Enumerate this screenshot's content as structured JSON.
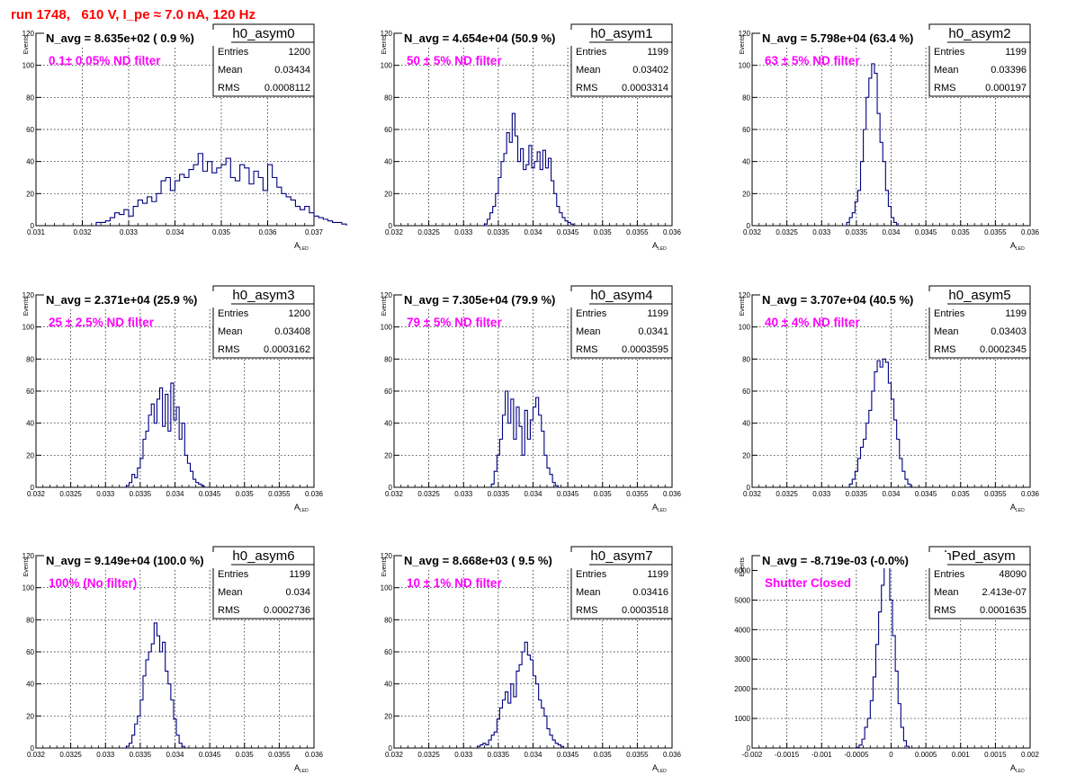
{
  "page": {
    "title": "run 1748,   610 V, I_pe ≈ 7.0 nA, 120 Hz",
    "colors": {
      "title": "#ff0000",
      "filter_label": "#ff00ff",
      "histogram_line": "#000080"
    }
  },
  "chart_data": [
    {
      "type": "histogram",
      "stat_name": "h0_asym0",
      "nav_label": "N_avg = 8.635e+02 ( 0.9 %)",
      "filter_label": "0.1± 0.05% ND filter",
      "stats": {
        "Entries": "1200",
        "Mean": "0.03434",
        "RMS": "0.0008112"
      },
      "ylabel": "Events",
      "xlabel": "A",
      "xlabel_sub": "LED",
      "xlim": [
        0.031,
        0.037
      ],
      "ylim": [
        0,
        120
      ],
      "xticks": [
        0.031,
        0.032,
        0.033,
        0.034,
        0.035,
        0.036,
        0.037
      ],
      "xtick_labels": [
        "0.031",
        "0.032",
        "0.033",
        "0.034",
        "0.035",
        "0.036",
        "0.037"
      ],
      "yticks": [
        0,
        20,
        40,
        60,
        80,
        100,
        120
      ],
      "ytick_labels": [
        "0",
        "20",
        "40",
        "60",
        "80",
        "100",
        "120"
      ],
      "grid": true,
      "bins": {
        "start": 0.0323,
        "width": 0.0001,
        "counts": [
          2,
          2,
          3,
          5,
          8,
          7,
          10,
          6,
          12,
          16,
          14,
          18,
          15,
          20,
          28,
          30,
          22,
          28,
          32,
          30,
          35,
          38,
          45,
          34,
          40,
          33,
          36,
          38,
          42,
          30,
          28,
          38,
          36,
          26,
          34,
          30,
          22,
          38,
          30,
          24,
          20,
          18,
          16,
          12,
          10,
          12,
          8,
          6,
          5,
          4,
          3,
          2,
          2,
          1
        ]
      }
    },
    {
      "type": "histogram",
      "stat_name": "h0_asym1",
      "nav_label": "N_avg = 4.654e+04 (50.9 %)",
      "filter_label": "50 ± 5% ND filter",
      "stats": {
        "Entries": "1199",
        "Mean": "0.03402",
        "RMS": "0.0003314"
      },
      "ylabel": "Events",
      "xlabel": "A",
      "xlabel_sub": "LED",
      "xlim": [
        0.032,
        0.036
      ],
      "ylim": [
        0,
        120
      ],
      "xticks": [
        0.032,
        0.0325,
        0.033,
        0.0335,
        0.034,
        0.0345,
        0.035,
        0.0355,
        0.036
      ],
      "xtick_labels": [
        "0.032",
        "0.0325",
        "0.033",
        "0.0335",
        "0.034",
        "0.0345",
        "0.035",
        "0.0355",
        "0.036"
      ],
      "yticks": [
        0,
        20,
        40,
        60,
        80,
        100,
        120
      ],
      "ytick_labels": [
        "0",
        "20",
        "40",
        "60",
        "80",
        "100",
        "120"
      ],
      "grid": true,
      "bins": {
        "start": 0.0333,
        "width": 4e-05,
        "counts": [
          1,
          4,
          8,
          12,
          20,
          30,
          40,
          45,
          58,
          52,
          70,
          56,
          40,
          48,
          35,
          38,
          50,
          36,
          40,
          46,
          35,
          47,
          36,
          42,
          28,
          20,
          12,
          8,
          5,
          3,
          2,
          1
        ]
      }
    },
    {
      "type": "histogram",
      "stat_name": "h0_asym2",
      "nav_label": "N_avg = 5.798e+04 (63.4 %)",
      "filter_label": "63 ± 5% ND filter",
      "stats": {
        "Entries": "1199",
        "Mean": "0.03396",
        "RMS": "0.000197"
      },
      "ylabel": "Events",
      "xlabel": "A",
      "xlabel_sub": "LED",
      "xlim": [
        0.032,
        0.036
      ],
      "ylim": [
        0,
        120
      ],
      "xticks": [
        0.032,
        0.0325,
        0.033,
        0.0335,
        0.034,
        0.0345,
        0.035,
        0.0355,
        0.036
      ],
      "xtick_labels": [
        "0.032",
        "0.0325",
        "0.033",
        "0.0335",
        "0.034",
        "0.0345",
        "0.035",
        "0.0355",
        "0.036"
      ],
      "yticks": [
        0,
        20,
        40,
        60,
        80,
        100,
        120
      ],
      "ytick_labels": [
        "0",
        "20",
        "40",
        "60",
        "80",
        "100",
        "120"
      ],
      "grid": true,
      "bins": {
        "start": 0.03336,
        "width": 4e-05,
        "counts": [
          2,
          5,
          8,
          15,
          22,
          40,
          60,
          80,
          92,
          101,
          95,
          70,
          52,
          40,
          22,
          12,
          5,
          2
        ]
      }
    },
    {
      "type": "histogram",
      "stat_name": "h0_asym3",
      "nav_label": "N_avg = 2.371e+04 (25.9 %)",
      "filter_label": "25 ± 2.5% ND filter",
      "stats": {
        "Entries": "1200",
        "Mean": "0.03408",
        "RMS": "0.0003162"
      },
      "ylabel": "Events",
      "xlabel": "A",
      "xlabel_sub": "LED",
      "xlim": [
        0.032,
        0.036
      ],
      "ylim": [
        0,
        120
      ],
      "xticks": [
        0.032,
        0.0325,
        0.033,
        0.0335,
        0.034,
        0.0345,
        0.035,
        0.0355,
        0.036
      ],
      "xtick_labels": [
        "0.032",
        "0.0325",
        "0.033",
        "0.0335",
        "0.034",
        "0.0345",
        "0.035",
        "0.0355",
        "0.036"
      ],
      "yticks": [
        0,
        20,
        40,
        60,
        80,
        100,
        120
      ],
      "ytick_labels": [
        "0",
        "20",
        "40",
        "60",
        "80",
        "100",
        "120"
      ],
      "grid": true,
      "bins": {
        "start": 0.0333,
        "width": 4e-05,
        "counts": [
          1,
          3,
          8,
          6,
          12,
          18,
          30,
          35,
          45,
          52,
          40,
          55,
          62,
          38,
          58,
          35,
          65,
          42,
          50,
          30,
          40,
          20,
          15,
          10,
          5,
          3,
          2,
          1
        ]
      }
    },
    {
      "type": "histogram",
      "stat_name": "h0_asym4",
      "nav_label": "N_avg = 7.305e+04 (79.9 %)",
      "filter_label": "79 ± 5% ND filter",
      "stats": {
        "Entries": "1199",
        "Mean": "0.0341",
        "RMS": "0.0003595"
      },
      "ylabel": "Events",
      "xlabel": "A",
      "xlabel_sub": "LED",
      "xlim": [
        0.032,
        0.036
      ],
      "ylim": [
        0,
        120
      ],
      "xticks": [
        0.032,
        0.0325,
        0.033,
        0.0335,
        0.034,
        0.0345,
        0.035,
        0.0355,
        0.036
      ],
      "xtick_labels": [
        "0.032",
        "0.0325",
        "0.033",
        "0.0335",
        "0.034",
        "0.0345",
        "0.035",
        "0.0355",
        "0.036"
      ],
      "yticks": [
        0,
        20,
        40,
        60,
        80,
        100,
        120
      ],
      "ytick_labels": [
        "0",
        "20",
        "40",
        "60",
        "80",
        "100",
        "120"
      ],
      "grid": true,
      "bins": {
        "start": 0.0334,
        "width": 4e-05,
        "counts": [
          2,
          10,
          20,
          30,
          45,
          60,
          40,
          55,
          30,
          50,
          38,
          20,
          48,
          30,
          42,
          50,
          56,
          45,
          35,
          20,
          12,
          8,
          3,
          1
        ]
      }
    },
    {
      "type": "histogram",
      "stat_name": "h0_asym5",
      "nav_label": "N_avg = 3.707e+04 (40.5 %)",
      "filter_label": "40 ± 4% ND filter",
      "stats": {
        "Entries": "1199",
        "Mean": "0.03403",
        "RMS": "0.0002345"
      },
      "ylabel": "Events",
      "xlabel": "A",
      "xlabel_sub": "LED",
      "xlim": [
        0.032,
        0.036
      ],
      "ylim": [
        0,
        120
      ],
      "xticks": [
        0.032,
        0.0325,
        0.033,
        0.0335,
        0.034,
        0.0345,
        0.035,
        0.0355,
        0.036
      ],
      "xtick_labels": [
        "0.032",
        "0.0325",
        "0.033",
        "0.0335",
        "0.034",
        "0.0345",
        "0.035",
        "0.0355",
        "0.036"
      ],
      "yticks": [
        0,
        20,
        40,
        60,
        80,
        100,
        120
      ],
      "ytick_labels": [
        "0",
        "20",
        "40",
        "60",
        "80",
        "100",
        "120"
      ],
      "grid": true,
      "bins": {
        "start": 0.0334,
        "width": 4e-05,
        "counts": [
          2,
          5,
          10,
          18,
          25,
          30,
          40,
          48,
          60,
          72,
          79,
          75,
          80,
          78,
          65,
          55,
          42,
          30,
          18,
          10,
          5,
          2
        ]
      }
    },
    {
      "type": "histogram",
      "stat_name": "h0_asym6",
      "nav_label": "N_avg = 9.149e+04 (100.0 %)",
      "filter_label": "100% (No filter)",
      "stats": {
        "Entries": "1199",
        "Mean": "0.034",
        "RMS": "0.0002736"
      },
      "ylabel": "Events",
      "xlabel": "A",
      "xlabel_sub": "LED",
      "xlim": [
        0.032,
        0.036
      ],
      "ylim": [
        0,
        120
      ],
      "xticks": [
        0.032,
        0.0325,
        0.033,
        0.0335,
        0.034,
        0.0345,
        0.035,
        0.0355,
        0.036
      ],
      "xtick_labels": [
        "0.032",
        "0.0325",
        "0.033",
        "0.0335",
        "0.034",
        "0.0345",
        "0.035",
        "0.0355",
        "0.036"
      ],
      "yticks": [
        0,
        20,
        40,
        60,
        80,
        100,
        120
      ],
      "ytick_labels": [
        "0",
        "20",
        "40",
        "60",
        "80",
        "100",
        "120"
      ],
      "grid": true,
      "bins": {
        "start": 0.0333,
        "width": 4e-05,
        "counts": [
          1,
          3,
          8,
          15,
          20,
          30,
          45,
          55,
          60,
          65,
          78,
          70,
          60,
          66,
          48,
          40,
          30,
          18,
          8,
          3,
          1
        ]
      }
    },
    {
      "type": "histogram",
      "stat_name": "h0_asym7",
      "nav_label": "N_avg = 8.668e+03 ( 9.5 %)",
      "filter_label": "10 ± 1% ND filter",
      "stats": {
        "Entries": "1199",
        "Mean": "0.03416",
        "RMS": "0.0003518"
      },
      "ylabel": "Events",
      "xlabel": "A",
      "xlabel_sub": "LED",
      "xlim": [
        0.032,
        0.036
      ],
      "ylim": [
        0,
        120
      ],
      "xticks": [
        0.032,
        0.0325,
        0.033,
        0.0335,
        0.034,
        0.0345,
        0.035,
        0.0355,
        0.036
      ],
      "xtick_labels": [
        "0.032",
        "0.0325",
        "0.033",
        "0.0335",
        "0.034",
        "0.0345",
        "0.035",
        "0.0355",
        "0.036"
      ],
      "yticks": [
        0,
        20,
        40,
        60,
        80,
        100,
        120
      ],
      "ytick_labels": [
        "0",
        "20",
        "40",
        "60",
        "80",
        "100",
        "120"
      ],
      "grid": true,
      "bins": {
        "start": 0.0332,
        "width": 4e-05,
        "counts": [
          1,
          2,
          3,
          2,
          5,
          8,
          10,
          18,
          25,
          30,
          35,
          28,
          40,
          32,
          48,
          52,
          60,
          66,
          58,
          55,
          45,
          40,
          30,
          25,
          20,
          12,
          8,
          5,
          3,
          2,
          1
        ]
      }
    },
    {
      "type": "histogram",
      "stat_name": "hPed_asym",
      "nav_label": "N_avg = -8.719e-03 (-0.0%)",
      "filter_label": "Shutter Closed",
      "stats": {
        "Entries": "48090",
        "Mean": "2.413e-07",
        "RMS": "0.0001635"
      },
      "ylabel": "Events",
      "xlabel": "A",
      "xlabel_sub": "LED",
      "xlim": [
        -0.002,
        0.002
      ],
      "ylim": [
        0,
        6500
      ],
      "xticks": [
        -0.002,
        -0.0015,
        -0.001,
        -0.0005,
        0,
        0.0005,
        0.001,
        0.0015,
        0.002
      ],
      "xtick_labels": [
        "-0.002",
        "-0.0015",
        "-0.001",
        "-0.0005",
        "0",
        "0.0005",
        "0.001",
        "0.0015",
        "0.002"
      ],
      "yticks": [
        0,
        1000,
        2000,
        3000,
        4000,
        5000,
        6000
      ],
      "ytick_labels": [
        "0",
        "1000",
        "2000",
        "3000",
        "4000",
        "5000",
        "6000"
      ],
      "grid": true,
      "bins": {
        "start": -0.0005,
        "width": 4e-05,
        "counts": [
          20,
          100,
          300,
          700,
          1000,
          1600,
          2400,
          3500,
          4600,
          5500,
          6400,
          6100,
          5000,
          3800,
          2600,
          1500,
          700,
          250,
          60
        ]
      }
    }
  ]
}
